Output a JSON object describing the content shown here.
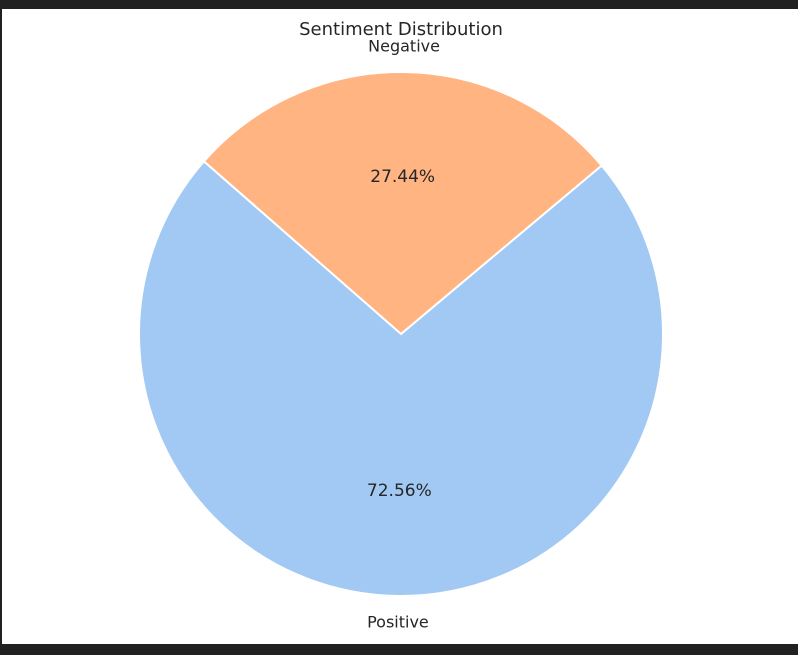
{
  "chart_data": {
    "type": "pie",
    "title": "Sentiment Distribution",
    "categories": [
      "Negative",
      "Positive"
    ],
    "values": [
      27.44,
      72.56
    ],
    "labels": [
      "27.44%",
      "72.56%"
    ],
    "colors": [
      "#FFB482",
      "#A1C9F4"
    ],
    "edge_color": "#FFFFFF"
  }
}
